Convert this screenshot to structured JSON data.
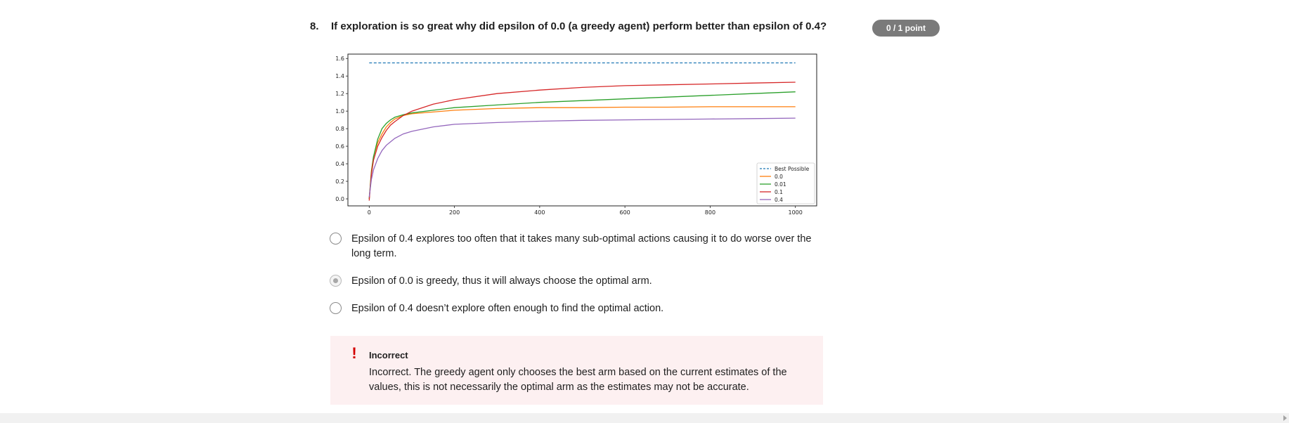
{
  "question": {
    "number": "8.",
    "text": "If exploration is so great why did epsilon of 0.0 (a greedy agent) perform better than epsilon of 0.4?",
    "score": "0 / 1 point"
  },
  "chart_data": {
    "type": "line",
    "title": "",
    "xlabel": "",
    "ylabel": "",
    "xlim": [
      -50,
      1050
    ],
    "ylim": [
      -0.08,
      1.65
    ],
    "x_ticks": [
      "0",
      "200",
      "400",
      "600",
      "800",
      "1000"
    ],
    "y_ticks": [
      "0.0",
      "0.2",
      "0.4",
      "0.6",
      "0.8",
      "1.0",
      "1.2",
      "1.4",
      "1.6"
    ],
    "legend_position": "bottom-right",
    "series": [
      {
        "name": "Best Possible",
        "color": "#1f77b4",
        "dashed": true,
        "x": [
          0,
          1000
        ],
        "y": [
          1.55,
          1.55
        ]
      },
      {
        "name": "0.0",
        "color": "#ff7f0e",
        "x": [
          0,
          5,
          10,
          20,
          30,
          40,
          50,
          60,
          80,
          100,
          150,
          200,
          300,
          400,
          500,
          600,
          700,
          800,
          900,
          1000
        ],
        "y": [
          0.0,
          0.32,
          0.48,
          0.64,
          0.74,
          0.82,
          0.87,
          0.91,
          0.95,
          0.97,
          0.99,
          1.01,
          1.03,
          1.04,
          1.04,
          1.045,
          1.045,
          1.05,
          1.05,
          1.05
        ]
      },
      {
        "name": "0.01",
        "color": "#2ca02c",
        "x": [
          0,
          5,
          10,
          20,
          30,
          40,
          50,
          60,
          80,
          100,
          150,
          200,
          300,
          400,
          500,
          600,
          700,
          800,
          900,
          1000
        ],
        "y": [
          0.0,
          0.3,
          0.48,
          0.68,
          0.8,
          0.86,
          0.9,
          0.93,
          0.96,
          0.98,
          1.01,
          1.04,
          1.07,
          1.1,
          1.12,
          1.14,
          1.16,
          1.18,
          1.2,
          1.22
        ]
      },
      {
        "name": "0.1",
        "color": "#d62728",
        "x": [
          0,
          5,
          10,
          20,
          30,
          40,
          50,
          60,
          80,
          100,
          150,
          200,
          300,
          400,
          500,
          600,
          700,
          800,
          900,
          1000
        ],
        "y": [
          -0.02,
          0.28,
          0.44,
          0.6,
          0.7,
          0.78,
          0.84,
          0.88,
          0.95,
          1.0,
          1.08,
          1.13,
          1.2,
          1.24,
          1.27,
          1.29,
          1.3,
          1.31,
          1.32,
          1.33
        ]
      },
      {
        "name": "0.4",
        "color": "#9467bd",
        "x": [
          0,
          5,
          10,
          20,
          30,
          40,
          50,
          60,
          80,
          100,
          150,
          200,
          300,
          400,
          500,
          600,
          700,
          800,
          900,
          1000
        ],
        "y": [
          0.02,
          0.22,
          0.33,
          0.46,
          0.55,
          0.61,
          0.65,
          0.69,
          0.74,
          0.77,
          0.82,
          0.85,
          0.87,
          0.885,
          0.895,
          0.9,
          0.905,
          0.91,
          0.915,
          0.92
        ]
      }
    ]
  },
  "options": [
    {
      "text": "Epsilon of 0.4 explores too often that it takes many sub-optimal actions causing it to do worse over the long term.",
      "selected": false
    },
    {
      "text": "Epsilon of 0.0 is greedy, thus it will always choose the optimal arm.",
      "selected": true
    },
    {
      "text": "Epsilon of 0.4 doesn’t explore often enough to find the optimal action.",
      "selected": false
    }
  ],
  "feedback": {
    "icon": "exclamation-icon",
    "icon_glyph": "!",
    "title": "Incorrect",
    "text": "Incorrect. The greedy agent only chooses the best arm based on the current estimates of the values, this is not necessarily the optimal arm as the estimates may not be accurate.",
    "color": "#d30001"
  }
}
